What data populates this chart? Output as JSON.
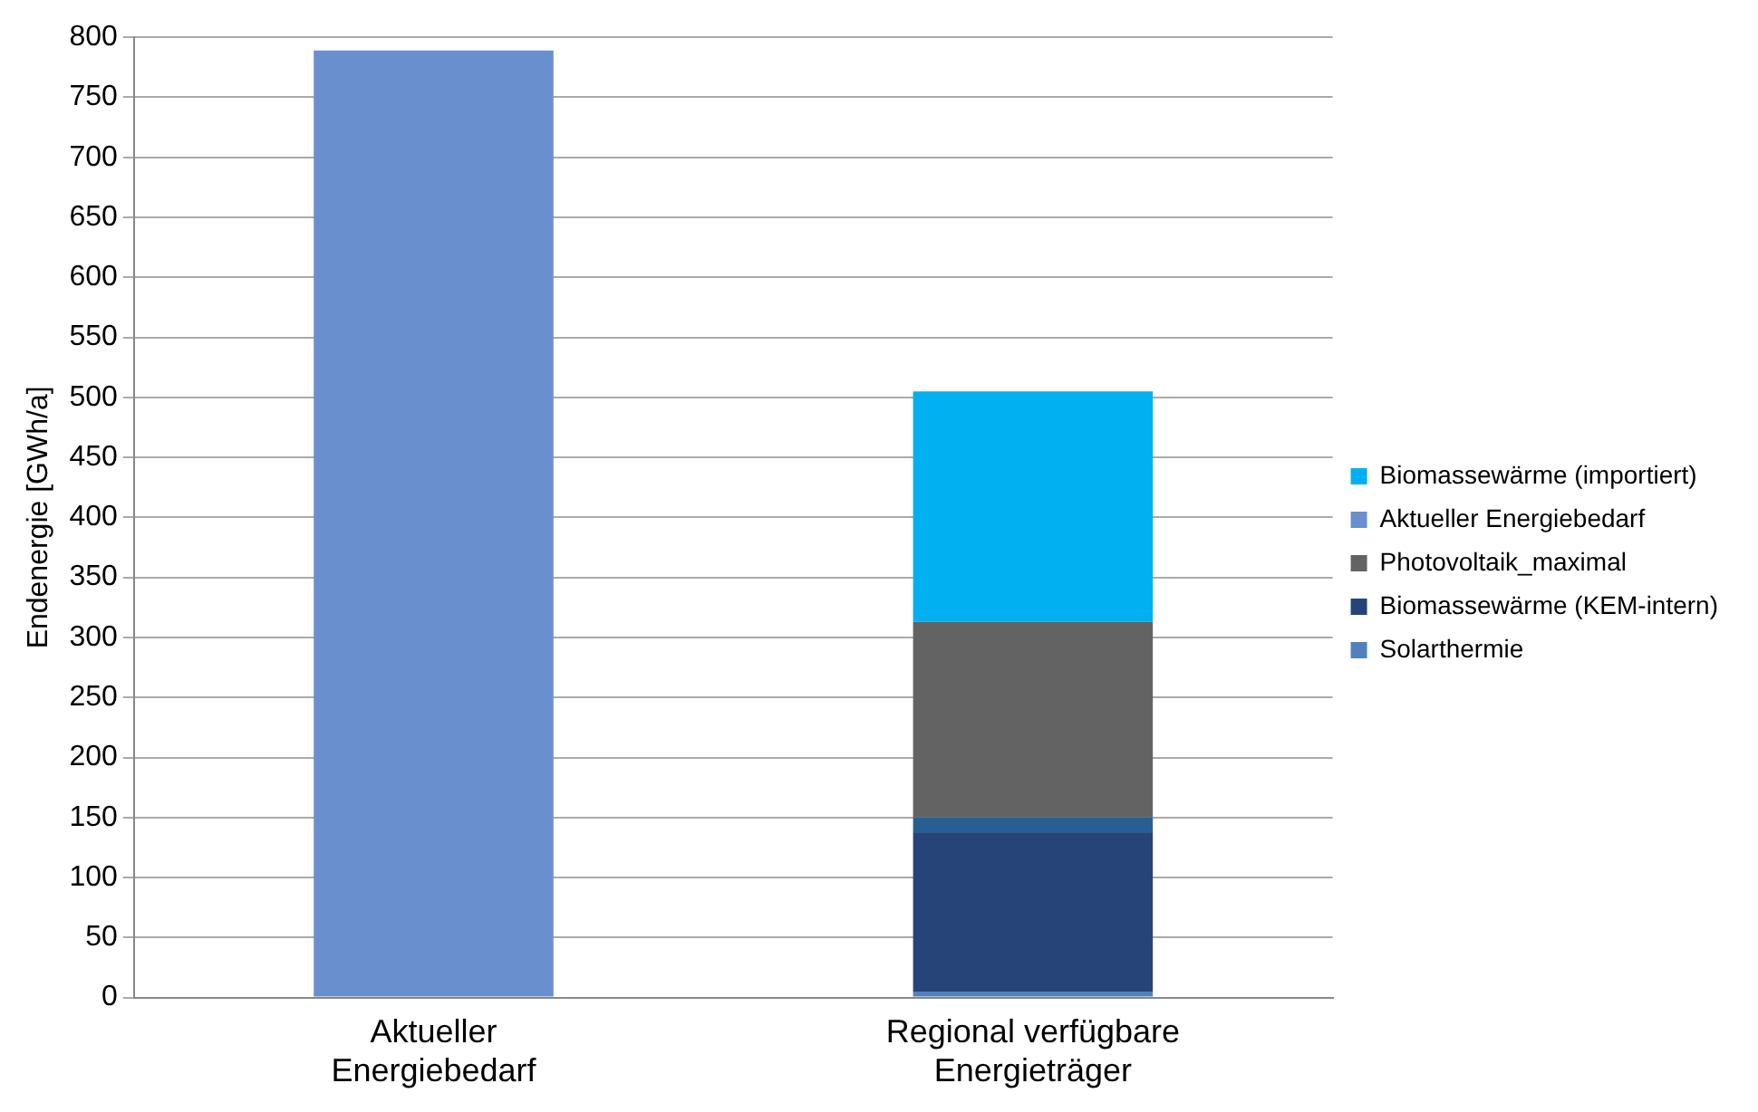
{
  "chart_data": {
    "type": "bar",
    "stacked": true,
    "ylabel": "Endenergie [GWh/a]",
    "categories": [
      "Aktueller Energiebedarf",
      "Regional verfügbare Energieträger"
    ],
    "series": [
      {
        "name": "Solarthermie",
        "color": "#4f81bd",
        "values": [
          null,
          5
        ]
      },
      {
        "name": "Biomassewärme (KEM-intern)",
        "color": "#264478",
        "values": [
          null,
          132
        ]
      },
      {
        "color": "#275f93",
        "values": [
          null,
          13
        ]
      },
      {
        "name": "Photovoltaik_maximal",
        "color": "#636363",
        "values": [
          null,
          163
        ]
      },
      {
        "name": "Aktueller Energiebedarf",
        "color": "#6a8fcf",
        "values": [
          789,
          null
        ]
      },
      {
        "name": "Biomassewärme (importiert)",
        "color": "#00b0f0",
        "values": [
          null,
          192
        ]
      }
    ],
    "ylim": [
      0,
      800
    ],
    "yticks": [
      0,
      50,
      100,
      150,
      200,
      250,
      300,
      350,
      400,
      450,
      500,
      550,
      600,
      650,
      700,
      750,
      800
    ],
    "grid": "y",
    "legend": "right"
  }
}
